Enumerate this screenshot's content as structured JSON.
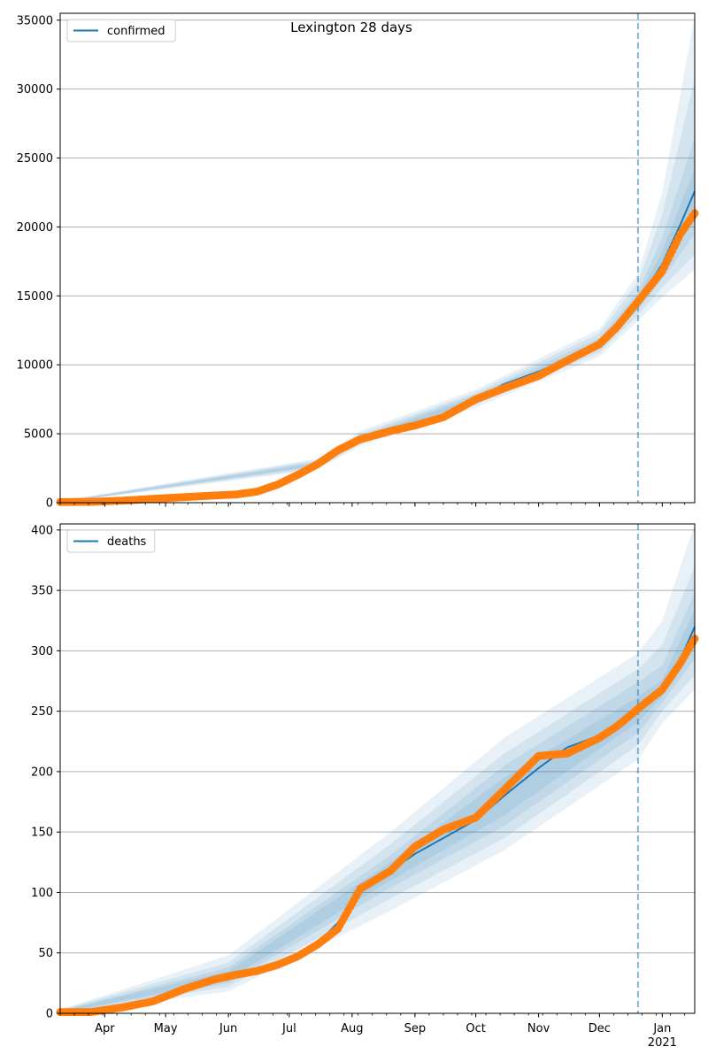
{
  "chart_data": [
    {
      "type": "line",
      "title": "Lexington 28 days",
      "legend": [
        "confirmed"
      ],
      "legend_position": "top-left",
      "grid": "y-major",
      "x_range": [
        "2020-03-10",
        "2021-01-17"
      ],
      "ylim": [
        0,
        35500
      ],
      "yticks": [
        0,
        5000,
        10000,
        15000,
        20000,
        25000,
        30000,
        35000
      ],
      "forecast_start": "2020-12-20",
      "colors": {
        "model": "#1f77b4",
        "observed": "#ff7f0e",
        "band": "#1f77b4",
        "forecast_line": "#1f77b4",
        "grid": "#b0b0b0"
      },
      "model": {
        "x": [
          "2020-03-10",
          "2020-03-25",
          "2020-04-10",
          "2020-04-25",
          "2020-05-10",
          "2020-05-25",
          "2020-06-05",
          "2020-06-15",
          "2020-06-25",
          "2020-07-05",
          "2020-07-15",
          "2020-07-25",
          "2020-08-05",
          "2020-08-20",
          "2020-09-01",
          "2020-09-15",
          "2020-10-01",
          "2020-10-15",
          "2020-11-01",
          "2020-11-15",
          "2020-12-01",
          "2020-12-10",
          "2020-12-20",
          "2021-01-01",
          "2021-01-10",
          "2021-01-17"
        ],
        "y": [
          50,
          60,
          150,
          280,
          400,
          520,
          600,
          800,
          1300,
          2000,
          2800,
          3800,
          4600,
          5200,
          5600,
          6200,
          7500,
          8600,
          9500,
          10400,
          11500,
          12800,
          14600,
          17300,
          20200,
          22600
        ]
      },
      "observed": {
        "x": [
          "2020-03-10",
          "2020-03-25",
          "2020-04-10",
          "2020-04-25",
          "2020-05-10",
          "2020-05-25",
          "2020-06-05",
          "2020-06-15",
          "2020-06-25",
          "2020-07-05",
          "2020-07-15",
          "2020-07-25",
          "2020-08-05",
          "2020-08-20",
          "2020-09-01",
          "2020-09-15",
          "2020-10-01",
          "2020-10-15",
          "2020-11-01",
          "2020-11-15",
          "2020-12-01",
          "2020-12-10",
          "2020-12-20",
          "2021-01-01",
          "2021-01-10",
          "2021-01-17"
        ],
        "y": [
          50,
          60,
          150,
          280,
          400,
          520,
          600,
          800,
          1300,
          2000,
          2800,
          3800,
          4600,
          5200,
          5600,
          6200,
          7500,
          8300,
          9200,
          10300,
          11500,
          12800,
          14600,
          16800,
          19500,
          21000
        ]
      },
      "bands": [
        {
          "x": [
            "2020-03-10",
            "2020-07-15",
            "2020-08-05",
            "2020-10-01",
            "2020-12-01",
            "2020-12-20",
            "2021-01-01",
            "2021-01-17"
          ],
          "lo": [
            0,
            2400,
            4100,
            6900,
            10600,
            13200,
            14900,
            16900
          ],
          "hi": [
            130,
            3200,
            5200,
            8200,
            12600,
            16600,
            22500,
            35300
          ]
        },
        {
          "x": [
            "2020-03-10",
            "2020-07-15",
            "2020-08-05",
            "2020-10-01",
            "2020-12-01",
            "2020-12-20",
            "2021-01-01",
            "2021-01-17"
          ],
          "lo": [
            10,
            2500,
            4250,
            7100,
            10900,
            13600,
            15600,
            18000
          ],
          "hi": [
            110,
            3100,
            5000,
            8000,
            12300,
            16000,
            20900,
            30800
          ]
        },
        {
          "x": [
            "2020-03-10",
            "2020-07-15",
            "2020-08-05",
            "2020-10-01",
            "2020-12-01",
            "2020-12-20",
            "2021-01-01",
            "2021-01-17"
          ],
          "lo": [
            25,
            2620,
            4400,
            7250,
            11150,
            14000,
            16200,
            19500
          ],
          "hi": [
            90,
            2980,
            4850,
            7850,
            11950,
            15300,
            19200,
            26500
          ]
        },
        {
          "x": [
            "2020-03-10",
            "2020-07-15",
            "2020-08-05",
            "2020-10-01",
            "2020-12-01",
            "2020-12-20",
            "2021-01-01",
            "2021-01-17"
          ],
          "lo": [
            35,
            2720,
            4500,
            7380,
            11330,
            14300,
            16800,
            21000
          ],
          "hi": [
            70,
            2880,
            4720,
            7650,
            11700,
            14900,
            18200,
            24300
          ]
        }
      ]
    },
    {
      "type": "line",
      "title": "",
      "legend": [
        "deaths"
      ],
      "legend_position": "top-left",
      "grid": "y-major",
      "x_range": [
        "2020-03-10",
        "2021-01-17"
      ],
      "ylim": [
        0,
        405
      ],
      "yticks": [
        0,
        50,
        100,
        150,
        200,
        250,
        300,
        350,
        400
      ],
      "forecast_start": "2020-12-20",
      "xticks": [
        {
          "date": "2020-04-01",
          "label": "Apr"
        },
        {
          "date": "2020-05-01",
          "label": "May"
        },
        {
          "date": "2020-06-01",
          "label": "Jun"
        },
        {
          "date": "2020-07-01",
          "label": "Jul"
        },
        {
          "date": "2020-08-01",
          "label": "Aug"
        },
        {
          "date": "2020-09-01",
          "label": "Sep"
        },
        {
          "date": "2020-10-01",
          "label": "Oct"
        },
        {
          "date": "2020-11-01",
          "label": "Nov"
        },
        {
          "date": "2020-12-01",
          "label": "Dec"
        },
        {
          "date": "2021-01-01",
          "label": "Jan"
        }
      ],
      "xtick_sublabel": {
        "date": "2021-01-01",
        "label": "2021"
      },
      "colors": {
        "model": "#1f77b4",
        "observed": "#ff7f0e",
        "band": "#1f77b4",
        "forecast_line": "#1f77b4",
        "grid": "#b0b0b0"
      },
      "model": {
        "x": [
          "2020-03-10",
          "2020-03-25",
          "2020-04-10",
          "2020-04-25",
          "2020-05-10",
          "2020-05-25",
          "2020-06-05",
          "2020-06-15",
          "2020-06-25",
          "2020-07-05",
          "2020-07-15",
          "2020-07-25",
          "2020-08-05",
          "2020-08-20",
          "2020-09-01",
          "2020-09-15",
          "2020-10-01",
          "2020-10-15",
          "2020-11-01",
          "2020-11-15",
          "2020-12-01",
          "2020-12-10",
          "2020-12-20",
          "2021-01-01",
          "2021-01-10",
          "2021-01-17"
        ],
        "y": [
          1,
          1,
          4,
          11,
          20,
          27,
          32,
          36,
          40,
          47,
          58,
          75,
          100,
          118,
          132,
          145,
          160,
          180,
          203,
          220,
          230,
          240,
          252,
          268,
          293,
          320
        ]
      },
      "observed": {
        "x": [
          "2020-03-10",
          "2020-03-25",
          "2020-04-10",
          "2020-04-25",
          "2020-05-10",
          "2020-05-25",
          "2020-06-05",
          "2020-06-15",
          "2020-06-25",
          "2020-07-05",
          "2020-07-15",
          "2020-07-25",
          "2020-08-05",
          "2020-08-20",
          "2020-09-01",
          "2020-09-15",
          "2020-10-01",
          "2020-10-15",
          "2020-11-01",
          "2020-11-15",
          "2020-12-01",
          "2020-12-10",
          "2020-12-20",
          "2021-01-01",
          "2021-01-10",
          "2021-01-17"
        ],
        "y": [
          1,
          1,
          5,
          10,
          20,
          28,
          32,
          35,
          40,
          47,
          57,
          70,
          103,
          118,
          138,
          152,
          162,
          185,
          213,
          215,
          228,
          238,
          252,
          268,
          290,
          310
        ]
      },
      "bands": [
        {
          "x": [
            "2020-03-10",
            "2020-06-01",
            "2020-08-20",
            "2020-10-15",
            "2020-12-20",
            "2021-01-01",
            "2021-01-17"
          ],
          "lo": [
            0,
            18,
            85,
            135,
            210,
            240,
            268
          ],
          "hi": [
            3,
            48,
            150,
            228,
            298,
            325,
            405
          ]
        },
        {
          "x": [
            "2020-03-10",
            "2020-06-01",
            "2020-08-20",
            "2020-10-15",
            "2020-12-20",
            "2021-01-01",
            "2021-01-17"
          ],
          "lo": [
            0,
            22,
            95,
            145,
            222,
            250,
            280
          ],
          "hi": [
            3,
            42,
            140,
            215,
            285,
            305,
            370
          ]
        },
        {
          "x": [
            "2020-03-10",
            "2020-06-01",
            "2020-08-20",
            "2020-10-15",
            "2020-12-20",
            "2021-01-01",
            "2021-01-17"
          ],
          "lo": [
            0,
            25,
            104,
            155,
            232,
            257,
            293
          ],
          "hi": [
            2,
            38,
            131,
            205,
            274,
            288,
            348
          ]
        },
        {
          "x": [
            "2020-03-10",
            "2020-06-01",
            "2020-08-20",
            "2020-10-15",
            "2020-12-20",
            "2021-01-01",
            "2021-01-17"
          ],
          "lo": [
            0,
            28,
            110,
            164,
            241,
            262,
            305
          ],
          "hi": [
            2,
            35,
            125,
            195,
            262,
            276,
            334
          ]
        }
      ]
    }
  ]
}
